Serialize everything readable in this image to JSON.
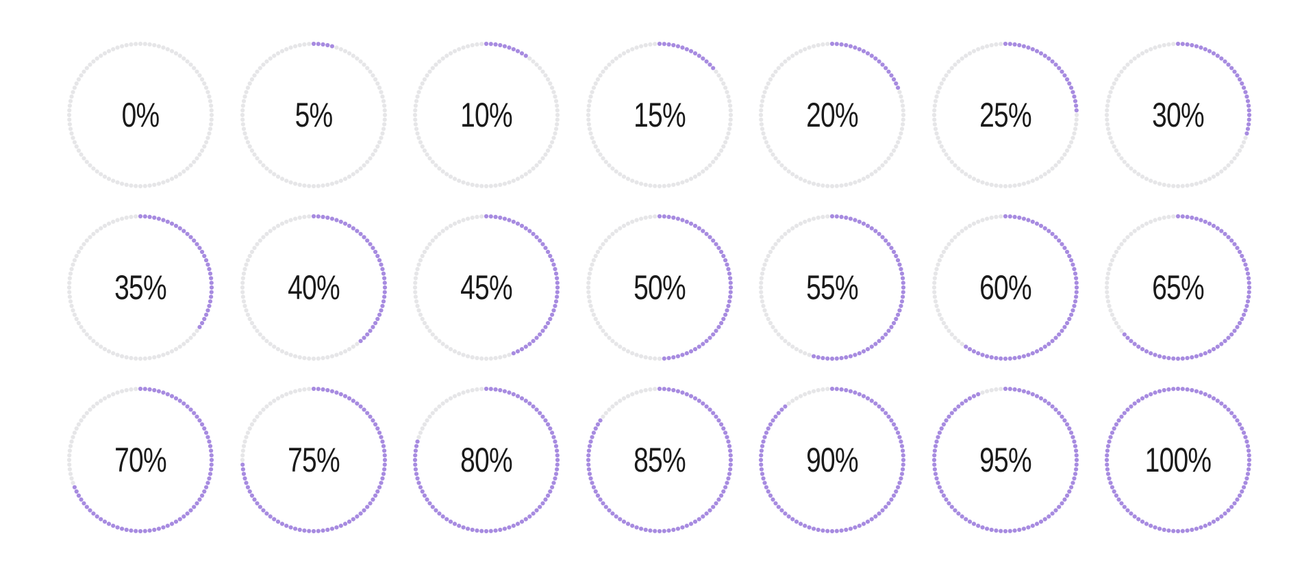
{
  "colors": {
    "filled": "#a78be0",
    "empty": "#e6e6e8",
    "text": "#1a1a1a",
    "background": "#ffffff"
  },
  "dots_per_ring": 96,
  "gauges": [
    {
      "label": "0%",
      "value": 0
    },
    {
      "label": "5%",
      "value": 5
    },
    {
      "label": "10%",
      "value": 10
    },
    {
      "label": "15%",
      "value": 15
    },
    {
      "label": "20%",
      "value": 20
    },
    {
      "label": "25%",
      "value": 25
    },
    {
      "label": "30%",
      "value": 30
    },
    {
      "label": "35%",
      "value": 35
    },
    {
      "label": "40%",
      "value": 40
    },
    {
      "label": "45%",
      "value": 45
    },
    {
      "label": "50%",
      "value": 50
    },
    {
      "label": "55%",
      "value": 55
    },
    {
      "label": "60%",
      "value": 60
    },
    {
      "label": "65%",
      "value": 65
    },
    {
      "label": "70%",
      "value": 70
    },
    {
      "label": "75%",
      "value": 75
    },
    {
      "label": "80%",
      "value": 80
    },
    {
      "label": "85%",
      "value": 85
    },
    {
      "label": "90%",
      "value": 90
    },
    {
      "label": "95%",
      "value": 95
    },
    {
      "label": "100%",
      "value": 100
    }
  ]
}
